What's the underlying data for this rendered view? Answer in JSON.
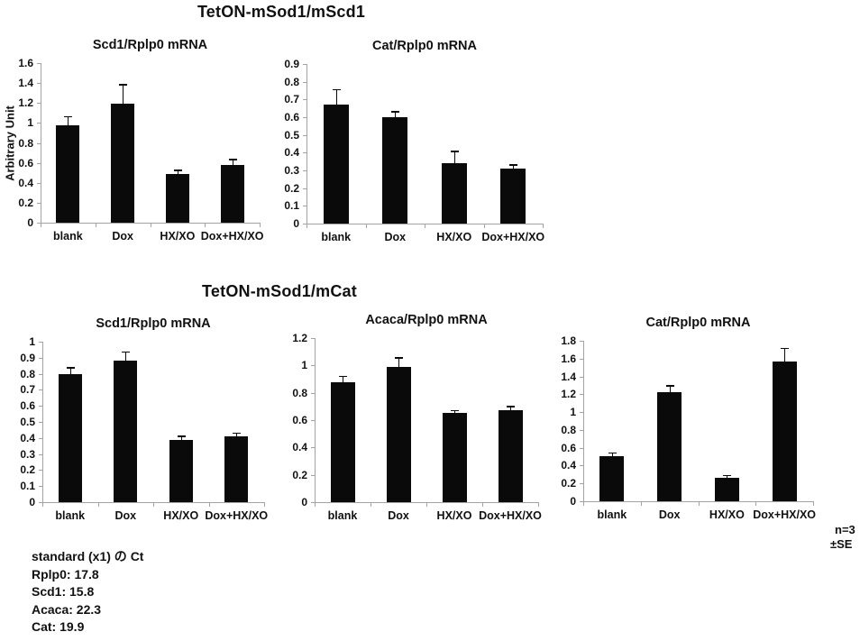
{
  "titles": {
    "top": "TetON-mSod1/mScd1",
    "bottom": "TetON-mSod1/mCat"
  },
  "annotation": {
    "n": "n=3",
    "se": "±SE"
  },
  "notes": {
    "heading": "standard (x1) の Ct",
    "lines": [
      "Rplp0: 17.8",
      "Scd1: 15.8",
      "Acaca: 22.3",
      "Cat: 19.9"
    ]
  },
  "colors": {
    "bar": "#0a0a0a",
    "axis": "#a3a3a3",
    "text": "#111111"
  },
  "chart_data": [
    {
      "type": "bar",
      "title": "Scd1/Rplp0 mRNA",
      "ylabel": "Arbitrary Unit",
      "categories": [
        "blank",
        "Dox",
        "HX/XO",
        "Dox+HX/XO"
      ],
      "values": [
        0.98,
        1.19,
        0.49,
        0.58
      ],
      "errors": [
        0.09,
        0.2,
        0.04,
        0.06
      ],
      "ylim": [
        0,
        1.6
      ],
      "ystep": 0.2,
      "grid": false,
      "legend": false
    },
    {
      "type": "bar",
      "title": "Cat/Rplp0 mRNA",
      "ylabel": "",
      "categories": [
        "blank",
        "Dox",
        "HX/XO",
        "Dox+HX/XO"
      ],
      "values": [
        0.67,
        0.6,
        0.34,
        0.31
      ],
      "errors": [
        0.09,
        0.035,
        0.07,
        0.025
      ],
      "ylim": [
        0,
        0.9
      ],
      "ystep": 0.1,
      "grid": false,
      "legend": false
    },
    {
      "type": "bar",
      "title": "Scd1/Rplp0 mRNA",
      "ylabel": "",
      "categories": [
        "blank",
        "Dox",
        "HX/XO",
        "Dox+HX/XO"
      ],
      "values": [
        0.8,
        0.88,
        0.39,
        0.41
      ],
      "errors": [
        0.04,
        0.06,
        0.025,
        0.025
      ],
      "ylim": [
        0,
        1
      ],
      "ystep": 0.1,
      "grid": false,
      "legend": false
    },
    {
      "type": "bar",
      "title": "Acaca/Rplp0 mRNA",
      "ylabel": "",
      "categories": [
        "blank",
        "Dox",
        "HX/XO",
        "Dox+HX/XO"
      ],
      "values": [
        0.88,
        0.99,
        0.65,
        0.67
      ],
      "errors": [
        0.045,
        0.07,
        0.025,
        0.035
      ],
      "ylim": [
        0,
        1.2
      ],
      "ystep": 0.2,
      "grid": false,
      "legend": false
    },
    {
      "type": "bar",
      "title": "Cat/Rplp0 mRNA",
      "ylabel": "",
      "categories": [
        "blank",
        "Dox",
        "HX/XO",
        "Dox+HX/XO"
      ],
      "values": [
        0.51,
        1.22,
        0.26,
        1.57
      ],
      "errors": [
        0.04,
        0.08,
        0.035,
        0.15
      ],
      "ylim": [
        0,
        1.8
      ],
      "ystep": 0.2,
      "grid": false,
      "legend": false
    }
  ]
}
